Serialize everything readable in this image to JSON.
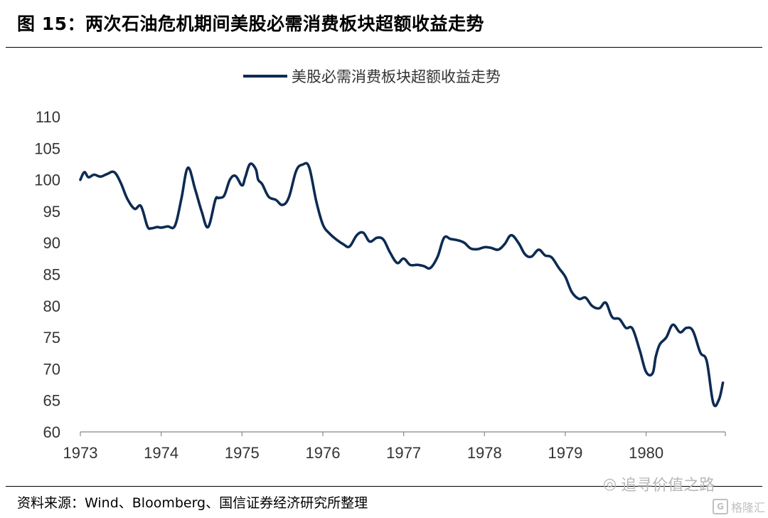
{
  "figure": {
    "title": "图  15：两次石油危机期间美股必需消费板块超额收益走势",
    "source": "资料来源：Wind、Bloomberg、国信证券经济研究所整理",
    "watermark_text": "追寻价值之路",
    "watermark_logo": "格隆汇",
    "watermark_logo_icon": "G"
  },
  "chart_data": {
    "type": "line",
    "title": "",
    "xlabel": "",
    "ylabel": "",
    "xlim": [
      1973,
      1980.98
    ],
    "ylim": [
      60,
      110
    ],
    "y_ticks": [
      60,
      65,
      70,
      75,
      80,
      85,
      90,
      95,
      100,
      105,
      110
    ],
    "x_ticks": [
      1973,
      1974,
      1975,
      1976,
      1977,
      1978,
      1979,
      1980
    ],
    "grid": false,
    "legend_position": "top-center",
    "colors": {
      "line": "#0d2b52"
    },
    "series": [
      {
        "name": "美股必需消费板块超额收益走势",
        "x": [
          1973.0,
          1973.05,
          1973.1,
          1973.17,
          1973.25,
          1973.33,
          1973.42,
          1973.5,
          1973.58,
          1973.67,
          1973.75,
          1973.83,
          1973.88,
          1973.95,
          1974.0,
          1974.08,
          1974.17,
          1974.25,
          1974.33,
          1974.42,
          1974.5,
          1974.58,
          1974.67,
          1974.71,
          1974.78,
          1974.85,
          1974.92,
          1975.0,
          1975.04,
          1975.1,
          1975.17,
          1975.2,
          1975.25,
          1975.33,
          1975.42,
          1975.5,
          1975.58,
          1975.67,
          1975.75,
          1975.83,
          1975.92,
          1976.0,
          1976.08,
          1976.17,
          1976.25,
          1976.33,
          1976.42,
          1976.5,
          1976.58,
          1976.67,
          1976.75,
          1976.83,
          1976.92,
          1977.0,
          1977.08,
          1977.17,
          1977.25,
          1977.33,
          1977.42,
          1977.5,
          1977.58,
          1977.67,
          1977.75,
          1977.83,
          1977.92,
          1978.0,
          1978.08,
          1978.17,
          1978.25,
          1978.33,
          1978.42,
          1978.5,
          1978.58,
          1978.67,
          1978.75,
          1978.83,
          1978.92,
          1979.0,
          1979.08,
          1979.17,
          1979.25,
          1979.33,
          1979.42,
          1979.5,
          1979.58,
          1979.67,
          1979.75,
          1979.83,
          1979.92,
          1980.0,
          1980.08,
          1980.12,
          1980.17,
          1980.25,
          1980.33,
          1980.42,
          1980.5,
          1980.58,
          1980.67,
          1980.75,
          1980.83,
          1980.9,
          1980.95
        ],
        "y": [
          100.0,
          101.2,
          100.4,
          100.8,
          100.5,
          100.9,
          101.2,
          99.5,
          97.0,
          95.4,
          95.8,
          92.6,
          92.3,
          92.5,
          92.4,
          92.6,
          92.7,
          97.0,
          101.9,
          98.5,
          95.0,
          92.5,
          96.8,
          97.1,
          97.5,
          100.0,
          100.6,
          99.1,
          100.4,
          102.5,
          101.7,
          100.0,
          99.3,
          97.3,
          96.8,
          96.0,
          97.2,
          101.4,
          102.4,
          102.0,
          96.5,
          92.9,
          91.5,
          90.5,
          89.8,
          89.4,
          91.2,
          91.6,
          90.2,
          90.8,
          90.5,
          88.5,
          86.8,
          87.5,
          86.5,
          86.5,
          86.3,
          86.0,
          87.8,
          90.8,
          90.6,
          90.4,
          90.0,
          89.1,
          89.0,
          89.3,
          89.2,
          88.9,
          89.8,
          91.2,
          90.0,
          88.2,
          87.8,
          88.9,
          88.0,
          87.7,
          86.0,
          84.6,
          82.2,
          81.1,
          81.3,
          80.0,
          79.6,
          80.5,
          78.2,
          77.9,
          76.5,
          76.4,
          73.0,
          69.5,
          69.3,
          72.0,
          73.9,
          75.0,
          77.0,
          75.8,
          76.5,
          76.0,
          72.6,
          71.2,
          64.6,
          65.1,
          67.8
        ]
      }
    ]
  }
}
